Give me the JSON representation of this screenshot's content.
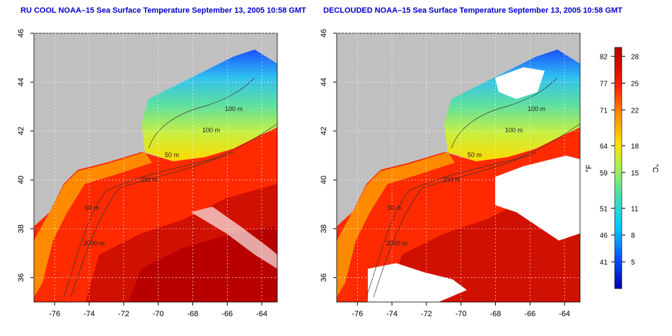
{
  "panels": [
    {
      "title": "RU COOL NOAA–15 Sea Surface Temperature September 13, 2005 10:58 GMT",
      "declouded": false
    },
    {
      "title": "DECLOUDED NOAA–15 Sea Surface Temperature September 13, 2005 10:58 GMT",
      "declouded": true
    }
  ],
  "axes": {
    "lon_ticks": [
      "-76",
      "-74",
      "-72",
      "-70",
      "-68",
      "-66",
      "-64"
    ],
    "lat_ticks": [
      "46",
      "44",
      "42",
      "40",
      "38",
      "36"
    ],
    "lon_range": [
      -77.2,
      -63.1
    ],
    "lat_range": [
      35.0,
      46.0
    ]
  },
  "contours": {
    "labels": [
      "100 m",
      "100 m",
      "50 m",
      "200 m",
      "50 m",
      "2000 m"
    ]
  },
  "colorbar": {
    "unit_f": "°F",
    "unit_c": "°C",
    "fahrenheit_ticks": [
      "82",
      "77",
      "71",
      "64",
      "59",
      "51",
      "46",
      "41"
    ],
    "celsius_ticks": [
      "28",
      "25",
      "22",
      "18",
      "15",
      "11",
      "8",
      "5"
    ],
    "celsius_range": [
      2,
      29
    ],
    "colors": {
      "cold": "#0000a8",
      "cool": "#00c8ff",
      "mild": "#5de0a0",
      "warm": "#ffe000",
      "hot": "#ff2000",
      "hottest": "#b00000"
    }
  },
  "surface_colors": {
    "land": "#c0c0c0",
    "cloud": "#ffffff"
  }
}
